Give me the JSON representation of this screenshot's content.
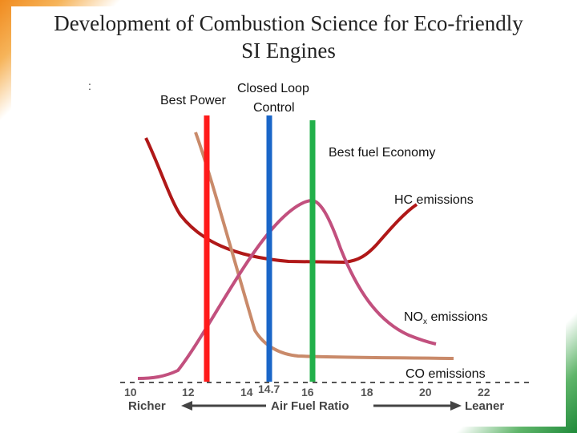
{
  "slide": {
    "title_line1": "Development of Combustion Science for Eco-friendly",
    "title_line2": "SI Engines"
  },
  "diagram": {
    "best_power": "Best Power",
    "closed_loop_1": "Closed Loop",
    "closed_loop_2": "Control",
    "best_fuel_economy": "Best fuel Economy",
    "hc": "HC emissions",
    "nox_prefix": "NO",
    "nox_sub": "x",
    "nox_suffix": " emissions",
    "co": "CO emissions",
    "axis_richer": "Richer",
    "axis_title": "Air Fuel Ratio",
    "axis_leaner": "Leaner",
    "ticks": [
      "10",
      "12",
      "14",
      "14.7",
      "16",
      "18",
      "20",
      "22"
    ],
    "colors": {
      "best_power": "#ff1a1a",
      "closed_loop": "#1a66c8",
      "best_economy": "#22b04a",
      "hc_curve": "#b01818",
      "nox_curve": "#c2507e",
      "co_curve": "#c98a6a"
    }
  }
}
